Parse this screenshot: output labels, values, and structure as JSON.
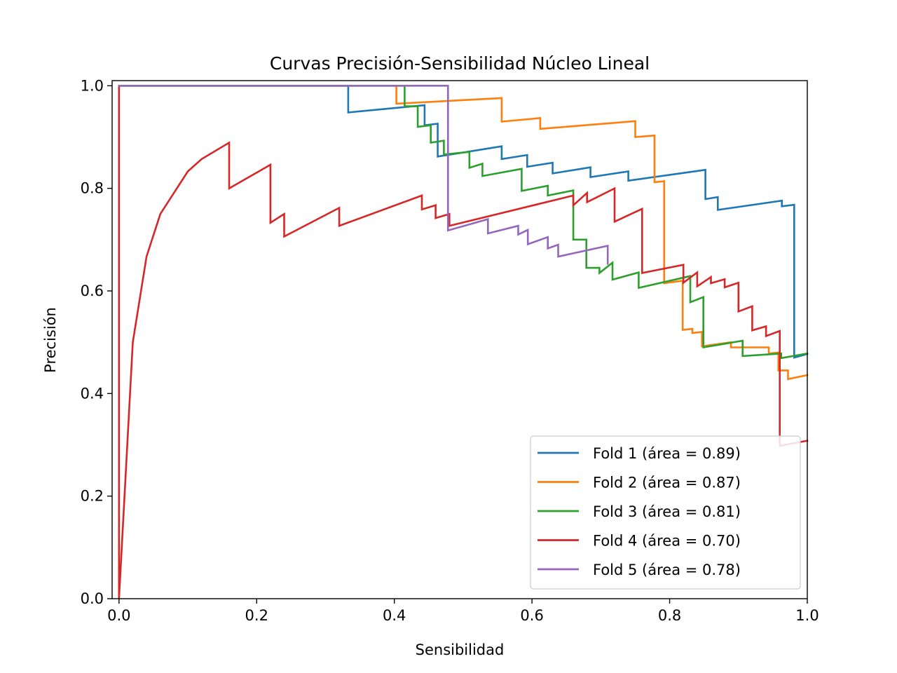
{
  "chart_data": {
    "type": "line",
    "title": "Curvas Precisión-Sensibilidad Núcleo Lineal",
    "xlabel": "Sensibilidad",
    "ylabel": "Precisión",
    "xlim": [
      -0.01,
      1.0
    ],
    "ylim": [
      0.0,
      1.01
    ],
    "xticks": [
      0.0,
      0.2,
      0.4,
      0.6,
      0.8,
      1.0
    ],
    "xtick_labels": [
      "0.0",
      "0.2",
      "0.4",
      "0.6",
      "0.8",
      "1.0"
    ],
    "yticks": [
      0.0,
      0.2,
      0.4,
      0.6,
      0.8,
      1.0
    ],
    "ytick_labels": [
      "0.0",
      "0.2",
      "0.4",
      "0.6",
      "0.8",
      "1.0"
    ],
    "grid": false,
    "legend_position": "lower right",
    "series": [
      {
        "name": "Fold 1 (área = 0.89)",
        "color": "#1f77b4",
        "points": [
          [
            0.0,
            1.0
          ],
          [
            0.333,
            1.0
          ],
          [
            0.333,
            0.948
          ],
          [
            0.444,
            0.962
          ],
          [
            0.444,
            0.923
          ],
          [
            0.463,
            0.926
          ],
          [
            0.463,
            0.862
          ],
          [
            0.556,
            0.882
          ],
          [
            0.556,
            0.857
          ],
          [
            0.593,
            0.865
          ],
          [
            0.593,
            0.842
          ],
          [
            0.63,
            0.85
          ],
          [
            0.63,
            0.829
          ],
          [
            0.685,
            0.841
          ],
          [
            0.685,
            0.822
          ],
          [
            0.74,
            0.833
          ],
          [
            0.74,
            0.815
          ],
          [
            0.852,
            0.836
          ],
          [
            0.852,
            0.779
          ],
          [
            0.87,
            0.783
          ],
          [
            0.87,
            0.758
          ],
          [
            0.963,
            0.776
          ],
          [
            0.963,
            0.765
          ],
          [
            0.981,
            0.768
          ],
          [
            0.981,
            0.47
          ],
          [
            1.0,
            0.477
          ]
        ]
      },
      {
        "name": "Fold 2 (área = 0.87)",
        "color": "#ff7f0e",
        "points": [
          [
            0.0,
            1.0
          ],
          [
            0.403,
            1.0
          ],
          [
            0.403,
            0.965
          ],
          [
            0.556,
            0.976
          ],
          [
            0.556,
            0.93
          ],
          [
            0.612,
            0.937
          ],
          [
            0.612,
            0.916
          ],
          [
            0.75,
            0.931
          ],
          [
            0.75,
            0.9
          ],
          [
            0.778,
            0.903
          ],
          [
            0.778,
            0.812
          ],
          [
            0.792,
            0.814
          ],
          [
            0.792,
            0.615
          ],
          [
            0.819,
            0.62
          ],
          [
            0.819,
            0.524
          ],
          [
            0.833,
            0.526
          ],
          [
            0.833,
            0.518
          ],
          [
            0.847,
            0.52
          ],
          [
            0.847,
            0.492
          ],
          [
            0.889,
            0.5
          ],
          [
            0.889,
            0.49
          ],
          [
            0.944,
            0.49
          ],
          [
            0.944,
            0.478
          ],
          [
            0.958,
            0.48
          ],
          [
            0.958,
            0.445
          ],
          [
            0.972,
            0.445
          ],
          [
            0.972,
            0.428
          ],
          [
            1.0,
            0.436
          ]
        ]
      },
      {
        "name": "Fold 3 (área = 0.81)",
        "color": "#2ca02c",
        "points": [
          [
            0.0,
            1.0
          ],
          [
            0.415,
            1.0
          ],
          [
            0.415,
            0.96
          ],
          [
            0.434,
            0.96
          ],
          [
            0.434,
            0.92
          ],
          [
            0.453,
            0.923
          ],
          [
            0.453,
            0.889
          ],
          [
            0.472,
            0.893
          ],
          [
            0.472,
            0.866
          ],
          [
            0.509,
            0.871
          ],
          [
            0.509,
            0.84
          ],
          [
            0.528,
            0.848
          ],
          [
            0.528,
            0.824
          ],
          [
            0.585,
            0.838
          ],
          [
            0.585,
            0.795
          ],
          [
            0.623,
            0.805
          ],
          [
            0.623,
            0.786
          ],
          [
            0.66,
            0.796
          ],
          [
            0.66,
            0.7
          ],
          [
            0.679,
            0.7
          ],
          [
            0.679,
            0.645
          ],
          [
            0.698,
            0.645
          ],
          [
            0.698,
            0.635
          ],
          [
            0.717,
            0.655
          ],
          [
            0.717,
            0.622
          ],
          [
            0.755,
            0.636
          ],
          [
            0.755,
            0.606
          ],
          [
            0.83,
            0.629
          ],
          [
            0.83,
            0.578
          ],
          [
            0.849,
            0.588
          ],
          [
            0.849,
            0.49
          ],
          [
            0.906,
            0.503
          ],
          [
            0.906,
            0.473
          ],
          [
            0.962,
            0.478
          ],
          [
            0.962,
            0.469
          ],
          [
            1.0,
            0.478
          ]
        ]
      },
      {
        "name": "Fold 4 (área = 0.70)",
        "color": "#d62728",
        "points": [
          [
            0.0,
            1.0
          ],
          [
            0.0,
            0.0
          ],
          [
            0.02,
            0.5
          ],
          [
            0.04,
            0.667
          ],
          [
            0.06,
            0.75
          ],
          [
            0.1,
            0.833
          ],
          [
            0.12,
            0.857
          ],
          [
            0.16,
            0.889
          ],
          [
            0.16,
            0.8
          ],
          [
            0.22,
            0.846
          ],
          [
            0.22,
            0.733
          ],
          [
            0.24,
            0.75
          ],
          [
            0.24,
            0.706
          ],
          [
            0.32,
            0.762
          ],
          [
            0.32,
            0.727
          ],
          [
            0.44,
            0.786
          ],
          [
            0.44,
            0.759
          ],
          [
            0.46,
            0.767
          ],
          [
            0.46,
            0.742
          ],
          [
            0.48,
            0.75
          ],
          [
            0.48,
            0.727
          ],
          [
            0.66,
            0.786
          ],
          [
            0.66,
            0.767
          ],
          [
            0.68,
            0.791
          ],
          [
            0.68,
            0.773
          ],
          [
            0.72,
            0.8
          ],
          [
            0.72,
            0.735
          ],
          [
            0.76,
            0.76
          ],
          [
            0.76,
            0.635
          ],
          [
            0.82,
            0.651
          ],
          [
            0.82,
            0.616
          ],
          [
            0.84,
            0.636
          ],
          [
            0.84,
            0.609
          ],
          [
            0.86,
            0.627
          ],
          [
            0.86,
            0.615
          ],
          [
            0.88,
            0.623
          ],
          [
            0.88,
            0.607
          ],
          [
            0.9,
            0.616
          ],
          [
            0.9,
            0.56
          ],
          [
            0.92,
            0.57
          ],
          [
            0.92,
            0.523
          ],
          [
            0.94,
            0.531
          ],
          [
            0.94,
            0.512
          ],
          [
            0.96,
            0.522
          ],
          [
            0.96,
            0.298
          ],
          [
            1.0,
            0.308
          ]
        ]
      },
      {
        "name": "Fold 5 (área = 0.78)",
        "color": "#9467bd",
        "points": [
          [
            0.0,
            1.0
          ],
          [
            0.478,
            1.0
          ],
          [
            0.478,
            0.718
          ],
          [
            0.536,
            0.74
          ],
          [
            0.536,
            0.712
          ],
          [
            0.58,
            0.727
          ],
          [
            0.58,
            0.71
          ],
          [
            0.594,
            0.719
          ],
          [
            0.594,
            0.691
          ],
          [
            0.623,
            0.705
          ],
          [
            0.623,
            0.683
          ],
          [
            0.638,
            0.69
          ],
          [
            0.638,
            0.667
          ],
          [
            0.71,
            0.688
          ],
          [
            0.71,
            0.653
          ],
          [
            0.71,
            0.653
          ],
          [
            0.71,
            0.653
          ],
          [
            0.71,
            0.653
          ],
          [
            0.71,
            0.653
          ],
          [
            0.71,
            0.653
          ],
          [
            0.71,
            0.653
          ],
          [
            0.71,
            0.653
          ],
          [
            0.71,
            0.653
          ],
          [
            0.71,
            0.653
          ],
          [
            0.71,
            0.653
          ]
        ]
      }
    ]
  }
}
